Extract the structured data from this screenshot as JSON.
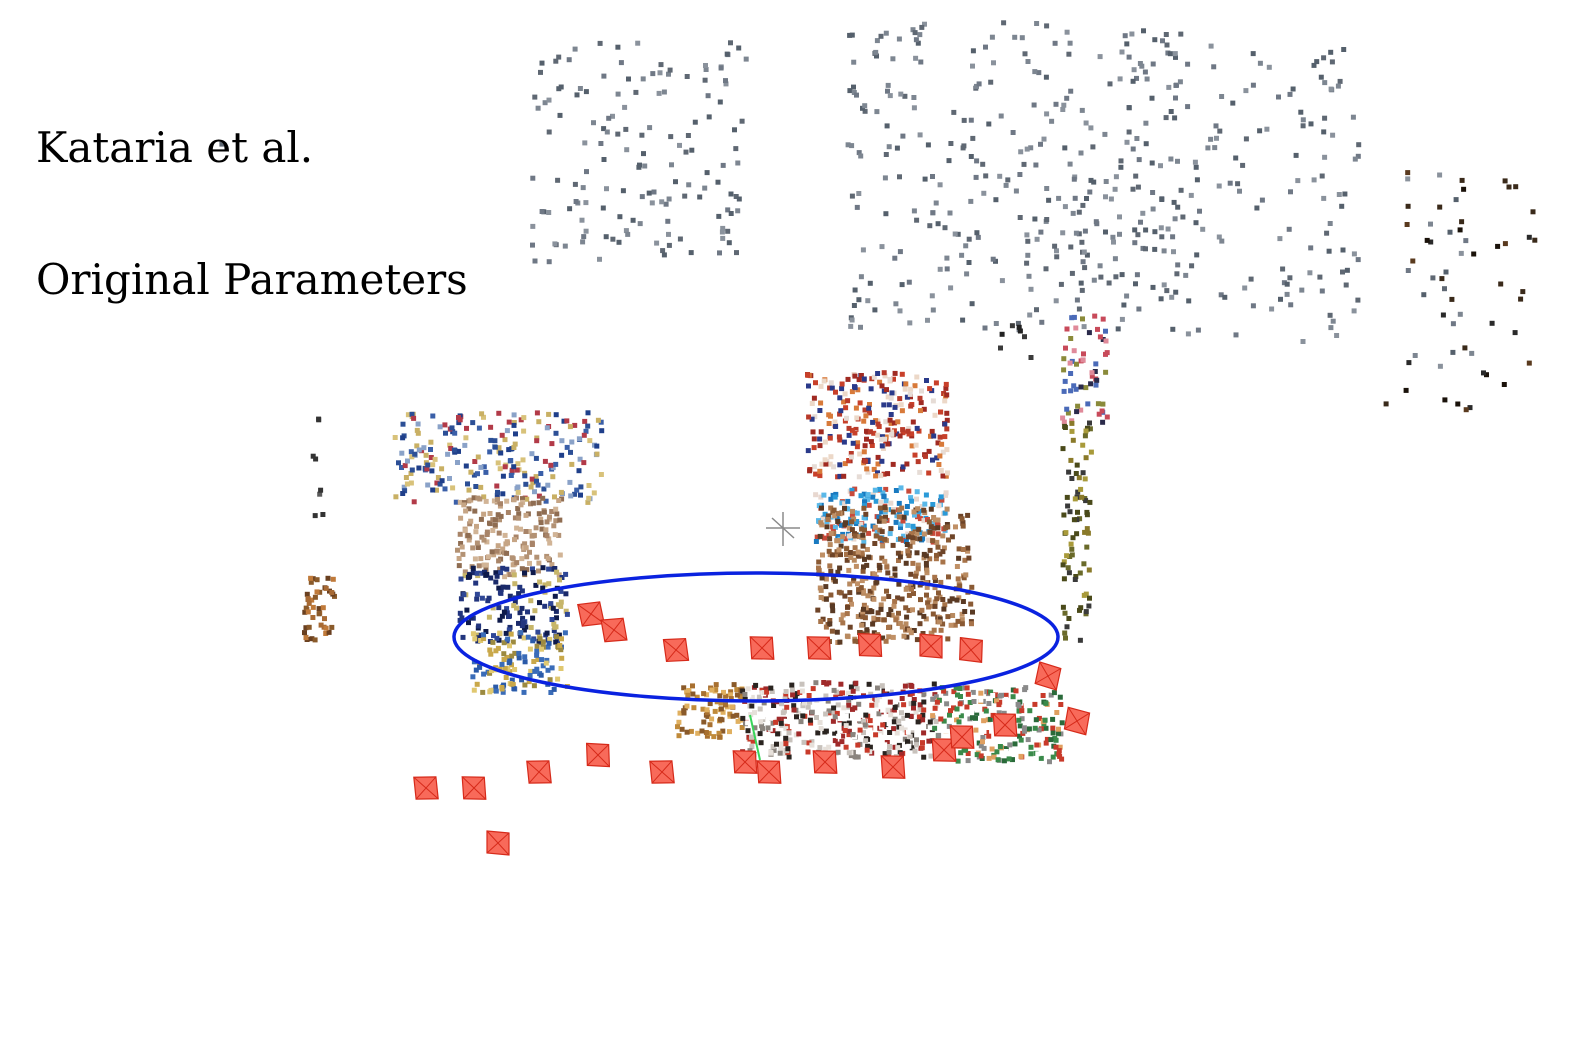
{
  "caption": {
    "line1": "Kataria et al.",
    "line2": "Original Parameters"
  },
  "colors": {
    "background": "#ffffff",
    "camera_fill": "#f86a5a",
    "camera_edge": "#d62a1a",
    "ellipse": "#0a22e0",
    "far_points": "#6b7480",
    "accent_green": "#38d65a"
  },
  "icons": [
    "camera-frustum-icon",
    "crosshair-icon"
  ]
}
